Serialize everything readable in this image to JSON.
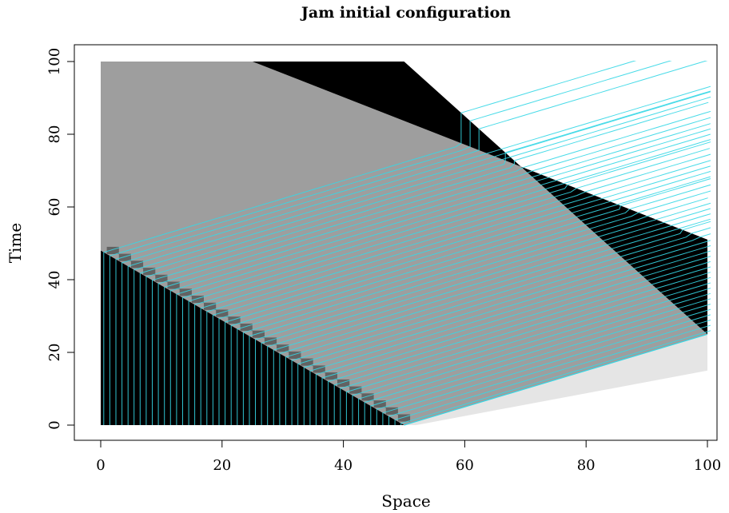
{
  "chart_data": {
    "type": "heatmap",
    "title": "Jam initial configuration",
    "xlabel": "Space",
    "ylabel": "Time",
    "xlim": [
      0,
      100
    ],
    "ylim": [
      0,
      100
    ],
    "x_ticks": [
      "0",
      "20",
      "40",
      "60",
      "80",
      "100"
    ],
    "y_ticks": [
      "0",
      "20",
      "40",
      "60",
      "80",
      "100"
    ],
    "grid": false,
    "legend": "none",
    "initial_jam_region": {
      "x": [
        0,
        50
      ],
      "t": 0
    },
    "jam_bands": [
      {
        "name": "",
        "upstream_edge": [
          [
            0,
            48
          ],
          [
            50,
            0
          ]
        ],
        "downstream_edge": [
          [
            50,
            0
          ],
          [
            50,
            0
          ]
        ]
      },
      {
        "name": "",
        "upstream_edge": [
          [
            25,
            100
          ],
          [
            100,
            51
          ]
        ],
        "downstream_edge": [
          [
            50,
            100
          ],
          [
            100,
            25
          ]
        ]
      }
    ],
    "free_flow_front": [
      [
        50,
        0
      ],
      [
        100,
        25
      ]
    ],
    "vehicle_trajectory_count": 50,
    "colors": {
      "jam": "#000000",
      "free_flow": "#9e9e9e",
      "empty_road": "#ffffff",
      "trajectory": "#35d7e5",
      "frame": "#000000"
    }
  }
}
